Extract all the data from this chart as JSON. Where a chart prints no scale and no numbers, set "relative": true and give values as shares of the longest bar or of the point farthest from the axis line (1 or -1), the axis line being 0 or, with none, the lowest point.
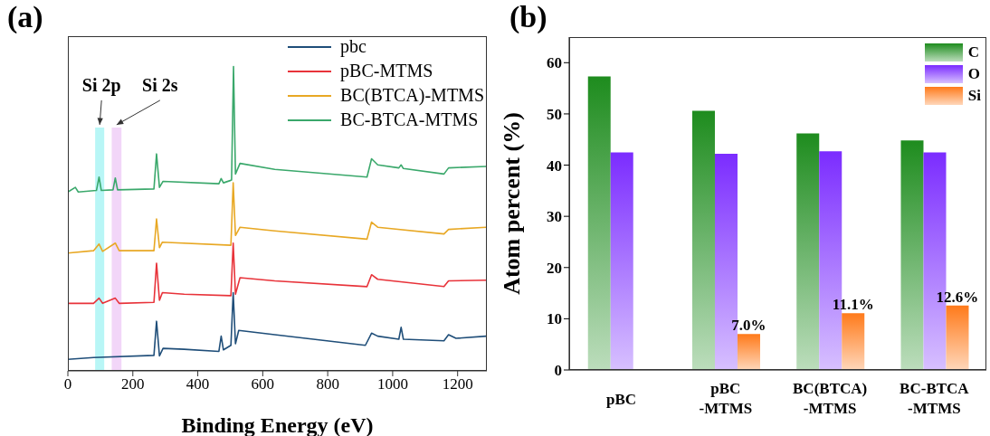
{
  "chart_data": [
    {
      "type": "line",
      "title": "(a)",
      "xlabel": "Binding Energy (eV)",
      "relative": true,
      "xlim": [
        0,
        1290
      ],
      "xticks": [
        0,
        200,
        400,
        600,
        800,
        1000,
        1200
      ],
      "legend": "top right",
      "bands": [
        {
          "axis": "x",
          "from": 84,
          "to": 112,
          "label": "Si 2p",
          "color": "#b8f6f6"
        },
        {
          "axis": "x",
          "from": 135,
          "to": 165,
          "label": "Si 2s",
          "color": "#f2d6f8"
        }
      ],
      "series": [
        {
          "name": "pbc",
          "color": "#1f4e79",
          "x": [
            0,
            79,
            265,
            273,
            282,
            293,
            358,
            465,
            472,
            479,
            502,
            509,
            516,
            526,
            637,
            916,
            935,
            954,
            1019,
            1026,
            1033,
            1158,
            1172,
            1195,
            1288
          ],
          "values": [
            0.038,
            0.044,
            0.051,
            0.163,
            0.049,
            0.074,
            0.071,
            0.064,
            0.114,
            0.069,
            0.084,
            0.257,
            0.089,
            0.133,
            0.119,
            0.084,
            0.124,
            0.114,
            0.104,
            0.143,
            0.104,
            0.099,
            0.119,
            0.107,
            0.114
          ]
        },
        {
          "name": "pBC-MTMS",
          "color": "#e8333a",
          "x": [
            0,
            79,
            96,
            107,
            146,
            158,
            265,
            273,
            282,
            291,
            358,
            502,
            509,
            516,
            530,
            637,
            921,
            935,
            954,
            1158,
            1172,
            1288
          ],
          "values": [
            0.222,
            0.222,
            0.239,
            0.222,
            0.239,
            0.222,
            0.225,
            0.354,
            0.232,
            0.257,
            0.252,
            0.247,
            0.42,
            0.252,
            0.306,
            0.296,
            0.277,
            0.316,
            0.301,
            0.277,
            0.296,
            0.298
          ]
        },
        {
          "name": "BC(BTCA)-MTMS",
          "color": "#e8a824",
          "x": [
            0,
            79,
            96,
            107,
            146,
            158,
            265,
            273,
            282,
            291,
            502,
            509,
            516,
            530,
            637,
            921,
            935,
            954,
            1158,
            1172,
            1288
          ],
          "values": [
            0.387,
            0.395,
            0.417,
            0.393,
            0.42,
            0.395,
            0.395,
            0.499,
            0.405,
            0.423,
            0.413,
            0.618,
            0.445,
            0.472,
            0.46,
            0.433,
            0.489,
            0.472,
            0.45,
            0.465,
            0.472
          ]
        },
        {
          "name": "BC-BTCA-MTMS",
          "color": "#3aa86b",
          "x": [
            0,
            23,
            32,
            88,
            96,
            103,
            139,
            146,
            153,
            265,
            273,
            282,
            293,
            465,
            472,
            479,
            504,
            510,
            516,
            530,
            637,
            921,
            935,
            954,
            1019,
            1026,
            1033,
            1158,
            1172,
            1288
          ],
          "values": [
            0.588,
            0.603,
            0.588,
            0.593,
            0.637,
            0.593,
            0.595,
            0.634,
            0.595,
            0.598,
            0.713,
            0.603,
            0.623,
            0.615,
            0.632,
            0.618,
            0.627,
            1,
            0.647,
            0.682,
            0.662,
            0.637,
            0.697,
            0.677,
            0.667,
            0.677,
            0.665,
            0.647,
            0.667,
            0.672
          ]
        }
      ]
    },
    {
      "type": "bar",
      "title": "(b)",
      "ylabel": "Atom percent (%)",
      "categories": [
        "pBC",
        "pBC\n-MTMS",
        "BC(BTCA)\n-MTMS",
        "BC-BTCA\n-MTMS"
      ],
      "ylim": [
        0,
        65
      ],
      "yticks": [
        0,
        10,
        20,
        30,
        40,
        50,
        60
      ],
      "legend": "top right",
      "series": [
        {
          "name": "C",
          "color": "#1e8c1e",
          "values": [
            57.3,
            50.6,
            46.2,
            44.8
          ]
        },
        {
          "name": "O",
          "color": "#7b2cff",
          "values": [
            42.5,
            42.2,
            42.7,
            42.5
          ]
        },
        {
          "name": "Si",
          "color": "#ff7a1a",
          "values": [
            null,
            7.0,
            11.1,
            12.6
          ],
          "value_labels": [
            null,
            "7.0%",
            "11.1%",
            "12.6%"
          ]
        }
      ]
    }
  ]
}
